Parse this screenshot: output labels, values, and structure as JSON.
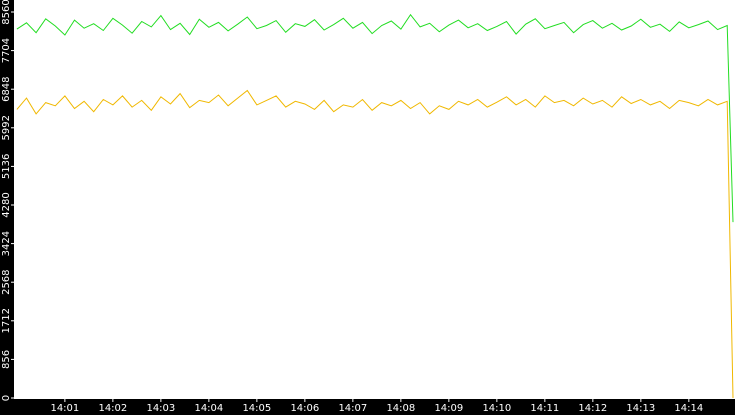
{
  "chart_data": {
    "type": "line",
    "x": [
      0,
      0.2,
      0.4,
      0.6,
      0.8,
      1,
      1.2,
      1.4,
      1.6,
      1.8,
      2,
      2.2,
      2.4,
      2.6,
      2.8,
      3,
      3.2,
      3.4,
      3.6,
      3.8,
      4,
      4.2,
      4.4,
      4.6,
      4.8,
      5,
      5.2,
      5.4,
      5.6,
      5.8,
      6,
      6.2,
      6.4,
      6.6,
      6.8,
      7,
      7.2,
      7.4,
      7.6,
      7.8,
      8,
      8.2,
      8.4,
      8.6,
      8.8,
      9,
      9.2,
      9.4,
      9.6,
      9.8,
      10,
      10.2,
      10.4,
      10.6,
      10.8,
      11,
      11.2,
      11.4,
      11.6,
      11.8,
      12,
      12.2,
      12.4,
      12.6,
      12.8,
      13,
      13.2,
      13.4,
      13.6,
      13.8,
      14,
      14.2,
      14.4,
      14.6,
      14.8,
      14.92
    ],
    "series": [
      {
        "color": "#22dd22",
        "values": [
          8180,
          8320,
          8100,
          8410,
          8250,
          8050,
          8380,
          8200,
          8300,
          8150,
          8420,
          8270,
          8090,
          8350,
          8230,
          8480,
          8170,
          8310,
          8060,
          8400,
          8220,
          8330,
          8140,
          8290,
          8450,
          8190,
          8260,
          8370,
          8110,
          8300,
          8240,
          8390,
          8160,
          8280,
          8420,
          8200,
          8330,
          8080,
          8260,
          8360,
          8180,
          8500,
          8230,
          8310,
          8120,
          8270,
          8380,
          8210,
          8300,
          8150,
          8240,
          8350,
          8070,
          8290,
          8410,
          8190,
          8260,
          8330,
          8100,
          8280,
          8370,
          8200,
          8310,
          8160,
          8250,
          8400,
          8220,
          8290,
          8130,
          8340,
          8210,
          8280,
          8360,
          8170,
          8260,
          3900
        ]
      },
      {
        "color": "#f0b800",
        "values": [
          6400,
          6650,
          6300,
          6550,
          6480,
          6700,
          6420,
          6580,
          6350,
          6620,
          6500,
          6700,
          6450,
          6600,
          6380,
          6680,
          6520,
          6750,
          6440,
          6600,
          6550,
          6720,
          6480,
          6650,
          6820,
          6500,
          6600,
          6700,
          6450,
          6580,
          6520,
          6400,
          6600,
          6350,
          6500,
          6450,
          6620,
          6380,
          6550,
          6480,
          6600,
          6420,
          6550,
          6300,
          6480,
          6400,
          6580,
          6500,
          6620,
          6450,
          6560,
          6680,
          6500,
          6620,
          6450,
          6700,
          6550,
          6600,
          6480,
          6650,
          6520,
          6600,
          6450,
          6680,
          6530,
          6620,
          6500,
          6580,
          6420,
          6600,
          6550,
          6480,
          6620,
          6500,
          6580,
          0
        ]
      }
    ],
    "xlim": [
      -0.06,
      14.92
    ],
    "xticks": [
      {
        "value": 1,
        "label": "14:01"
      },
      {
        "value": 2,
        "label": "14:02"
      },
      {
        "value": 3,
        "label": "14:03"
      },
      {
        "value": 4,
        "label": "14:04"
      },
      {
        "value": 5,
        "label": "14:05"
      },
      {
        "value": 6,
        "label": "14:06"
      },
      {
        "value": 7,
        "label": "14:07"
      },
      {
        "value": 8,
        "label": "14:08"
      },
      {
        "value": 9,
        "label": "14:09"
      },
      {
        "value": 10,
        "label": "14:10"
      },
      {
        "value": 11,
        "label": "14:11"
      },
      {
        "value": 12,
        "label": "14:12"
      },
      {
        "value": 13,
        "label": "14:13"
      },
      {
        "value": 14,
        "label": "14:14"
      }
    ],
    "ylim": [
      0,
      8560
    ],
    "yticks": [
      0,
      856,
      1712,
      2568,
      3424,
      4280,
      5136,
      5992,
      6848,
      7704,
      8560
    ]
  }
}
